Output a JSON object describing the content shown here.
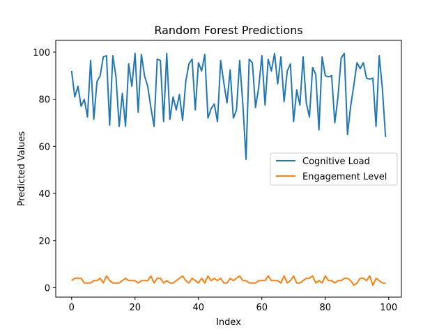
{
  "chart_data": {
    "type": "line",
    "title": "Random Forest Predictions",
    "xlabel": "Index",
    "ylabel": "Predicted Values",
    "xlim": [
      -5,
      104
    ],
    "ylim": [
      -4,
      105
    ],
    "xticks": [
      0,
      20,
      40,
      60,
      80,
      100
    ],
    "yticks": [
      0,
      20,
      40,
      60,
      80,
      100
    ],
    "grid": false,
    "legend_position": "center-right",
    "series": [
      {
        "name": "Cognitive Load",
        "color": "#1f77b4",
        "values": [
          92,
          81,
          85.5,
          77,
          80,
          72.5,
          96.5,
          71.5,
          87.5,
          90,
          98,
          98.5,
          69,
          98.5,
          89.5,
          68.5,
          82.5,
          68.5,
          95,
          85.5,
          99.5,
          74.5,
          99,
          90,
          85.5,
          76.5,
          68.5,
          97,
          96.5,
          70.5,
          99.5,
          71.5,
          81,
          75.5,
          82,
          71,
          87.5,
          95,
          97,
          75.5,
          95.5,
          92,
          99,
          72,
          76,
          78,
          70.5,
          96.5,
          87,
          78.5,
          92.5,
          72,
          75.5,
          96.5,
          78,
          54.5,
          97,
          95.5,
          76.5,
          85,
          98.5,
          77.5,
          97,
          92,
          99.5,
          86.5,
          98,
          79,
          92,
          95,
          70.5,
          84,
          77.5,
          98,
          78.5,
          72.5,
          93.5,
          90.5,
          67,
          98,
          90,
          89.5,
          90,
          70,
          81,
          97.5,
          99.5,
          65,
          77,
          86,
          95.5,
          93,
          95.5,
          89,
          88.5,
          89,
          68.5,
          98.5,
          84.5,
          64
        ]
      },
      {
        "name": "Engagement Level",
        "color": "#ff7f0e",
        "values": [
          3,
          4,
          4,
          4,
          2,
          2,
          2,
          3,
          3,
          4,
          2,
          5,
          3,
          2,
          2,
          2,
          3,
          4,
          3,
          3,
          3,
          2,
          3,
          3,
          3,
          5,
          2,
          4,
          4,
          2,
          3,
          2,
          2,
          3,
          4,
          5,
          3,
          2,
          4,
          3,
          2,
          4,
          2,
          5,
          3,
          4,
          3,
          4,
          2,
          2,
          4,
          3,
          4,
          5,
          3,
          3,
          2,
          2,
          2,
          3,
          3,
          3,
          5,
          3,
          3,
          3,
          2,
          5,
          2,
          3,
          5,
          2,
          2,
          3,
          4,
          4,
          5,
          2,
          3,
          2,
          5,
          3,
          3,
          2,
          3,
          3,
          4,
          4,
          3,
          1,
          2,
          4,
          4,
          3,
          5,
          1,
          4,
          3,
          2,
          2
        ]
      }
    ]
  }
}
